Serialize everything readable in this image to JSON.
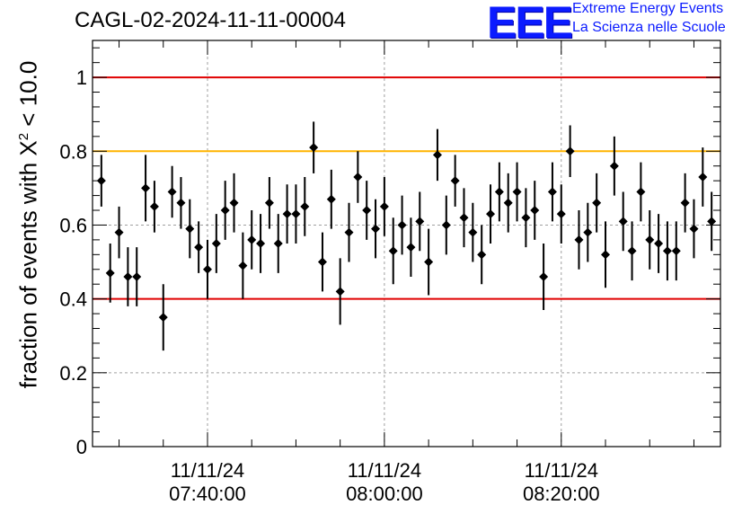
{
  "chart_data": {
    "type": "scatter",
    "title": "CAGL-02-2024-11-11-00004",
    "ylabel_prefix": "fraction of events with ",
    "ylabel_symbol": "X",
    "ylabel_exp": "2",
    "ylabel_suffix": " < 10.0",
    "ylim": [
      0,
      1.1
    ],
    "yticks": [
      "0",
      "0.2",
      "0.4",
      "0.6",
      "0.8",
      "1"
    ],
    "ytick_values": [
      0,
      0.2,
      0.4,
      0.6,
      0.8,
      1.0
    ],
    "xlim_minutes": [
      -13,
      58
    ],
    "xticks": [
      {
        "minute": 0,
        "date": "11/11/24",
        "time": "07:40:00"
      },
      {
        "minute": 20,
        "date": "11/11/24",
        "time": "08:00:00"
      },
      {
        "minute": 40,
        "date": "11/11/24",
        "time": "08:20:00"
      }
    ],
    "grid": true,
    "reference_lines": [
      {
        "value": 1.0,
        "color": "#e00000"
      },
      {
        "value": 0.8,
        "color": "#ffb400"
      },
      {
        "value": 0.4,
        "color": "#e00000"
      }
    ],
    "marker_color": "#000000",
    "x_minutes": [
      -12,
      -11,
      -10,
      -9,
      -8,
      -7,
      -6,
      -5,
      -4,
      -3,
      -2,
      -1,
      0,
      1,
      2,
      3,
      4,
      5,
      6,
      7,
      8,
      9,
      10,
      11,
      12,
      13,
      14,
      15,
      16,
      17,
      18,
      19,
      20,
      21,
      22,
      23,
      24,
      25,
      26,
      27,
      28,
      29,
      30,
      31,
      32,
      33,
      34,
      35,
      36,
      37,
      38,
      39,
      40,
      41,
      42,
      43,
      44,
      45,
      46,
      47,
      48,
      49,
      50,
      51,
      52,
      53,
      54,
      55,
      56,
      57
    ],
    "values": [
      0.72,
      0.47,
      0.58,
      0.46,
      0.46,
      0.7,
      0.65,
      0.35,
      0.69,
      0.66,
      0.59,
      0.54,
      0.48,
      0.55,
      0.64,
      0.66,
      0.49,
      0.56,
      0.55,
      0.66,
      0.55,
      0.63,
      0.63,
      0.65,
      0.81,
      0.5,
      0.67,
      0.42,
      0.58,
      0.73,
      0.64,
      0.59,
      0.65,
      0.53,
      0.6,
      0.54,
      0.61,
      0.5,
      0.79,
      0.6,
      0.72,
      0.62,
      0.58,
      0.52,
      0.63,
      0.69,
      0.66,
      0.69,
      0.62,
      0.64,
      0.46,
      0.69,
      0.63,
      0.8,
      0.56,
      0.58,
      0.66,
      0.52,
      0.76,
      0.61,
      0.53,
      0.69,
      0.56,
      0.55,
      0.53,
      0.53,
      0.66,
      0.59,
      0.73,
      0.61
    ],
    "errors": [
      0.07,
      0.08,
      0.07,
      0.08,
      0.08,
      0.09,
      0.07,
      0.09,
      0.07,
      0.07,
      0.08,
      0.07,
      0.08,
      0.08,
      0.08,
      0.08,
      0.09,
      0.08,
      0.08,
      0.07,
      0.08,
      0.08,
      0.08,
      0.08,
      0.07,
      0.08,
      0.08,
      0.09,
      0.08,
      0.07,
      0.08,
      0.08,
      0.08,
      0.09,
      0.08,
      0.08,
      0.08,
      0.09,
      0.07,
      0.08,
      0.07,
      0.08,
      0.08,
      0.08,
      0.08,
      0.08,
      0.08,
      0.08,
      0.08,
      0.08,
      0.09,
      0.08,
      0.08,
      0.07,
      0.08,
      0.08,
      0.08,
      0.09,
      0.08,
      0.08,
      0.08,
      0.08,
      0.08,
      0.08,
      0.08,
      0.08,
      0.08,
      0.08,
      0.08,
      0.08
    ]
  },
  "logo": {
    "mark": "EEE",
    "line1": "Extreme Energy Events",
    "line2": "La Scienza nelle Scuole"
  }
}
